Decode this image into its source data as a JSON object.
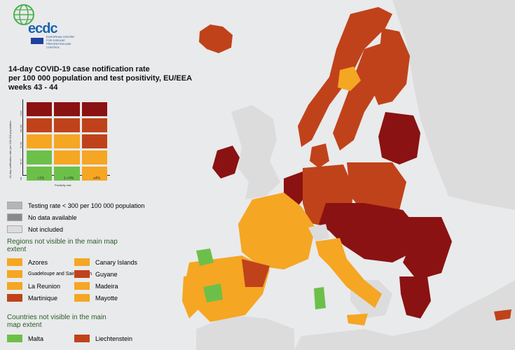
{
  "logo": {
    "text": "ecdc",
    "subtitle": "EUROPEAN CENTRE FOR DISEASE PREVENTION AND CONTROL"
  },
  "title": {
    "line1": "14-day COVID-19 case notification rate",
    "line2": "per 100 000 population and test positivity, EU/EEA",
    "line3": "weeks 43 - 44"
  },
  "matrix": {
    "y_axis_label": "14-day notification rate per 100 000 population",
    "y_ticks": [
      "≥ 500",
      "200-499",
      "75-199",
      "50-74",
      "<50"
    ],
    "x_ticks": [
      "<1%",
      "1-<4%",
      "≥4%"
    ],
    "x_label": "Positivity rate",
    "rows": [
      [
        "#8a1212",
        "#8a1212",
        "#8a1212"
      ],
      [
        "#c0421a",
        "#c0421a",
        "#c0421a"
      ],
      [
        "#f5a623",
        "#f5a623",
        "#c0421a"
      ],
      [
        "#6cc04a",
        "#f5a623",
        "#f5a623"
      ],
      [
        "#6cc04a",
        "#6cc04a",
        "#f5a623"
      ]
    ]
  },
  "colors": {
    "dark_red": "#8a1212",
    "red": "#c0421a",
    "orange": "#f5a623",
    "green": "#6cc04a",
    "grey": "#b5b5b5",
    "dark_grey": "#8a8a8a",
    "light_grey": "#dcdcdc",
    "sea": "#e9eaeb"
  },
  "legend": {
    "testing_rate": "Testing rate < 300 per 100 000 population",
    "no_data": "No data available",
    "not_included": "Not included"
  },
  "regions_heading": "Regions not visible in the main map extent",
  "regions": [
    {
      "name": "Azores",
      "color": "#f5a623"
    },
    {
      "name": "Canary Islands",
      "color": "#f5a623"
    },
    {
      "name": "Guadeloupe and Saint Martin",
      "color": "#f5a623"
    },
    {
      "name": "Guyane",
      "color": "#c0421a"
    },
    {
      "name": "La Reunion",
      "color": "#f5a623"
    },
    {
      "name": "Madeira",
      "color": "#f5a623"
    },
    {
      "name": "Martinique",
      "color": "#c0421a"
    },
    {
      "name": "Mayotte",
      "color": "#f5a623"
    }
  ],
  "countries_heading": "Countries not visible in the main map extent",
  "countries": [
    {
      "name": "Malta",
      "color": "#6cc04a"
    },
    {
      "name": "Liechtenstein",
      "color": "#c0421a"
    }
  ]
}
